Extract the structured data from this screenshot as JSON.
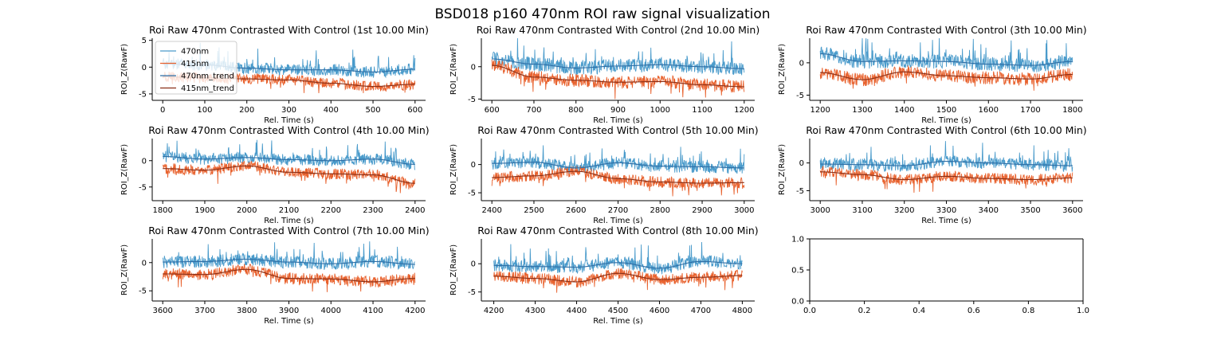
{
  "figure": {
    "suptitle": "BSD018 p160 470nm ROI  raw signal visualization"
  },
  "colors": {
    "signal470": "#4a9bcb",
    "signal415": "#e8622e",
    "trend470": "#2f6fa6",
    "trend415": "#8a2f16",
    "axis": "#000000"
  },
  "chart_data": [
    {
      "type": "line",
      "title": "Roi Raw 470nm Contrasted With Control (1st 10.00 Min)",
      "xlabel": "Rel. Time (s)",
      "ylabel": "ROI_Z(RawF)",
      "xlim": [
        -25,
        625
      ],
      "ylim": [
        -6.2,
        5.4
      ],
      "xticks": [
        0,
        100,
        200,
        300,
        400,
        500,
        600
      ],
      "yticks": [
        -5,
        0,
        5
      ],
      "x_range": [
        0,
        600
      ],
      "legend": {
        "placement": "upper-left",
        "entries": [
          "470nm",
          "415nm",
          "470nm_trend",
          "415nm_trend"
        ]
      },
      "series": [
        {
          "name": "470nm_trend",
          "x": [
            0,
            100,
            200,
            300,
            400,
            500,
            600
          ],
          "values": [
            0.6,
            0.4,
            -0.2,
            -0.5,
            -0.5,
            -0.9,
            -0.4
          ]
        },
        {
          "name": "415nm_trend",
          "x": [
            0,
            100,
            200,
            300,
            400,
            500,
            600
          ],
          "values": [
            -1.8,
            -2.0,
            -2.2,
            -2.4,
            -3.0,
            -3.6,
            -3.2
          ]
        }
      ]
    },
    {
      "type": "line",
      "title": "Roi Raw 470nm Contrasted With Control (2nd 10.00 Min)",
      "xlabel": "Rel. Time (s)",
      "ylabel": "ROI_Z(RawF)",
      "xlim": [
        575,
        1225
      ],
      "ylim": [
        -5.2,
        4.4
      ],
      "xticks": [
        600,
        700,
        800,
        900,
        1000,
        1100,
        1200
      ],
      "yticks": [
        -5,
        0
      ],
      "x_range": [
        600,
        1200
      ],
      "series": [
        {
          "name": "470nm_trend",
          "x": [
            600,
            700,
            800,
            900,
            1000,
            1100,
            1200
          ],
          "values": [
            1.2,
            0.4,
            -0.2,
            0.1,
            0.3,
            0.0,
            -0.3
          ]
        },
        {
          "name": "415nm_trend",
          "x": [
            600,
            700,
            800,
            900,
            1000,
            1100,
            1200
          ],
          "values": [
            0.2,
            -1.6,
            -2.1,
            -2.4,
            -2.3,
            -2.8,
            -3.1
          ]
        }
      ]
    },
    {
      "type": "line",
      "title": "Roi Raw 470nm Contrasted With Control (3th 10.00 Min)",
      "xlabel": "Rel. Time (s)",
      "ylabel": "ROI_Z(RawF)",
      "xlim": [
        1175,
        1825
      ],
      "ylim": [
        -5.8,
        3.8
      ],
      "xticks": [
        1200,
        1300,
        1400,
        1500,
        1600,
        1700,
        1800
      ],
      "yticks": [
        -5,
        0
      ],
      "x_range": [
        1200,
        1800
      ],
      "series": [
        {
          "name": "470nm_trend",
          "x": [
            1200,
            1300,
            1400,
            1500,
            1600,
            1700,
            1800
          ],
          "values": [
            1.4,
            0.2,
            0.3,
            0.2,
            -0.2,
            -0.4,
            0.2
          ]
        },
        {
          "name": "415nm_trend",
          "x": [
            1200,
            1300,
            1400,
            1500,
            1600,
            1700,
            1800
          ],
          "values": [
            -1.5,
            -2.6,
            -1.4,
            -2.0,
            -2.3,
            -2.5,
            -1.8
          ]
        }
      ]
    },
    {
      "type": "line",
      "title": "Roi Raw 470nm Contrasted With Control (4th 10.00 Min)",
      "xlabel": "Rel. Time (s)",
      "ylabel": "ROI_Z(RawF)",
      "xlim": [
        1775,
        2425
      ],
      "ylim": [
        -7.6,
        4.2
      ],
      "xticks": [
        1800,
        1900,
        2000,
        2100,
        2200,
        2300,
        2400
      ],
      "yticks": [
        -5,
        0
      ],
      "x_range": [
        1800,
        2400
      ],
      "series": [
        {
          "name": "470nm_trend",
          "x": [
            1800,
            1900,
            2000,
            2100,
            2200,
            2300,
            2400
          ],
          "values": [
            0.8,
            0.3,
            0.6,
            0.2,
            0.0,
            0.3,
            -0.7
          ]
        },
        {
          "name": "415nm_trend",
          "x": [
            1800,
            1900,
            2000,
            2100,
            2200,
            2300,
            2400
          ],
          "values": [
            -1.5,
            -1.8,
            -1.0,
            -2.2,
            -2.5,
            -2.7,
            -4.3
          ]
        }
      ]
    },
    {
      "type": "line",
      "title": "Roi Raw 470nm Contrasted With Control (5th 10.00 Min)",
      "xlabel": "Rel. Time (s)",
      "ylabel": "ROI_Z(RawF)",
      "xlim": [
        2375,
        3025
      ],
      "ylim": [
        -6.4,
        4.6
      ],
      "xticks": [
        2400,
        2500,
        2600,
        2700,
        2800,
        2900,
        3000
      ],
      "yticks": [
        -5,
        0
      ],
      "x_range": [
        2400,
        3000
      ],
      "series": [
        {
          "name": "470nm_trend",
          "x": [
            2400,
            2500,
            2600,
            2700,
            2800,
            2900,
            3000
          ],
          "values": [
            0.2,
            0.4,
            -0.6,
            0.3,
            -0.3,
            -0.4,
            -0.6
          ]
        },
        {
          "name": "415nm_trend",
          "x": [
            2400,
            2500,
            2600,
            2700,
            2800,
            2900,
            3000
          ],
          "values": [
            -2.3,
            -2.0,
            -1.2,
            -2.5,
            -3.1,
            -3.3,
            -3.2
          ]
        }
      ]
    },
    {
      "type": "line",
      "title": "Roi Raw 470nm Contrasted With Control (6th 10.00 Min)",
      "xlabel": "Rel. Time (s)",
      "ylabel": "ROI_Z(RawF)",
      "xlim": [
        2975,
        3625
      ],
      "ylim": [
        -6.8,
        4.4
      ],
      "xticks": [
        3000,
        3100,
        3200,
        3300,
        3400,
        3500,
        3600
      ],
      "yticks": [
        -5,
        0
      ],
      "x_range": [
        3000,
        3600
      ],
      "series": [
        {
          "name": "470nm_trend",
          "x": [
            3000,
            3100,
            3200,
            3300,
            3400,
            3500,
            3600
          ],
          "values": [
            -0.2,
            -0.3,
            -0.5,
            0.3,
            0.0,
            -0.3,
            -0.5
          ]
        },
        {
          "name": "415nm_trend",
          "x": [
            3000,
            3100,
            3200,
            3300,
            3400,
            3500,
            3600
          ],
          "values": [
            -1.6,
            -2.1,
            -3.0,
            -2.4,
            -2.8,
            -3.0,
            -2.7
          ]
        }
      ]
    },
    {
      "type": "line",
      "title": "Roi Raw 470nm Contrasted With Control (7th 10.00 Min)",
      "xlabel": "Rel. Time (s)",
      "ylabel": "ROI_Z(RawF)",
      "xlim": [
        3575,
        4225
      ],
      "ylim": [
        -6.8,
        4.2
      ],
      "xticks": [
        3600,
        3700,
        3800,
        3900,
        4000,
        4100,
        4200
      ],
      "yticks": [
        -5,
        0
      ],
      "x_range": [
        3600,
        4200
      ],
      "series": [
        {
          "name": "470nm_trend",
          "x": [
            3600,
            3700,
            3800,
            3900,
            4000,
            4100,
            4200
          ],
          "values": [
            0.1,
            0.2,
            0.6,
            0.1,
            -0.2,
            0.2,
            -0.3
          ]
        },
        {
          "name": "415nm_trend",
          "x": [
            3600,
            3700,
            3800,
            3900,
            4000,
            4100,
            4200
          ],
          "values": [
            -2.0,
            -2.1,
            -1.2,
            -2.8,
            -2.9,
            -3.4,
            -2.8
          ]
        }
      ]
    },
    {
      "type": "line",
      "title": "Roi Raw 470nm Contrasted With Control (8th 10.00 Min)",
      "xlabel": "Rel. Time (s)",
      "ylabel": "ROI_Z(RawF)",
      "xlim": [
        4170,
        4830
      ],
      "ylim": [
        -6.6,
        4.4
      ],
      "xticks": [
        4200,
        4300,
        4400,
        4500,
        4600,
        4700,
        4800
      ],
      "yticks": [
        -5,
        0
      ],
      "x_range": [
        4200,
        4800
      ],
      "series": [
        {
          "name": "470nm_trend",
          "x": [
            4200,
            4300,
            4400,
            4500,
            4600,
            4700,
            4800
          ],
          "values": [
            -0.3,
            -0.5,
            -0.6,
            0.2,
            -0.8,
            0.4,
            0.0
          ]
        },
        {
          "name": "415nm_trend",
          "x": [
            4200,
            4300,
            4400,
            4500,
            4600,
            4700,
            4800
          ],
          "values": [
            -2.2,
            -2.6,
            -3.2,
            -1.7,
            -2.8,
            -2.4,
            -2.1
          ]
        }
      ]
    },
    {
      "type": "line",
      "title": "",
      "xlabel": "",
      "ylabel": "",
      "xlim": [
        0,
        1
      ],
      "ylim": [
        0,
        1
      ],
      "xticks": [
        0.0,
        0.2,
        0.4,
        0.6,
        0.8,
        1.0
      ],
      "yticks": [
        0.0,
        0.5,
        1.0
      ],
      "tick_format": "1dp",
      "empty": true,
      "full_frame": true,
      "series": []
    }
  ]
}
